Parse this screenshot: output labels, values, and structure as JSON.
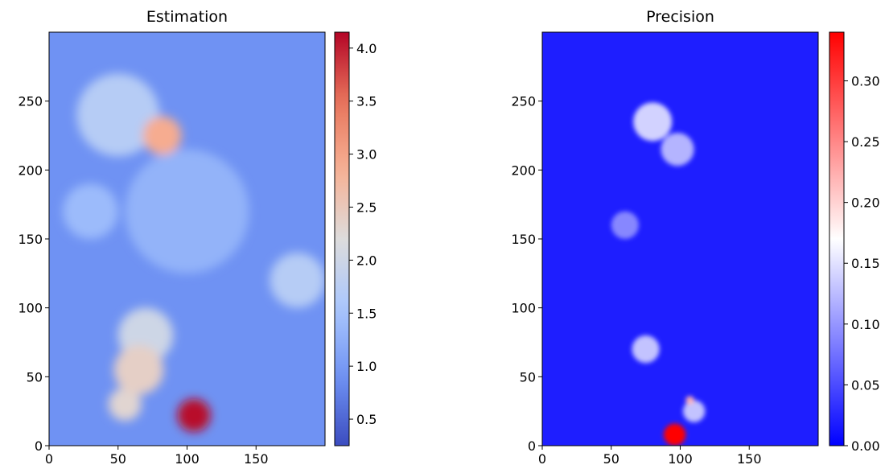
{
  "chart_data": [
    {
      "type": "heatmap",
      "title": "Estimation",
      "xlabel": "",
      "ylabel": "",
      "xlim": [
        0,
        200
      ],
      "ylim": [
        0,
        300
      ],
      "x_ticks": [
        0,
        50,
        100,
        150
      ],
      "y_ticks": [
        0,
        50,
        100,
        150,
        200,
        250
      ],
      "colormap": "coolwarm",
      "colorbar": {
        "range": [
          0.25,
          4.15
        ],
        "ticks": [
          "0.5",
          "1.0",
          "1.5",
          "2.0",
          "2.5",
          "3.0",
          "3.5",
          "4.0"
        ],
        "tick_values": [
          0.5,
          1.0,
          1.5,
          2.0,
          2.5,
          3.0,
          3.5,
          4.0
        ]
      },
      "colors": [
        "#3b4cc0",
        "#6f92f3",
        "#aac7fd",
        "#dddcdc",
        "#f7b194",
        "#e7745b",
        "#b40426"
      ],
      "background_value": 0.9,
      "hotspots": [
        {
          "x": 105,
          "y": 22,
          "value": 4.1,
          "radius": 12
        },
        {
          "x": 82,
          "y": 225,
          "value": 2.9,
          "radius": 14
        },
        {
          "x": 65,
          "y": 55,
          "value": 2.4,
          "radius": 18
        },
        {
          "x": 55,
          "y": 30,
          "value": 2.3,
          "radius": 12
        },
        {
          "x": 70,
          "y": 80,
          "value": 2.0,
          "radius": 20
        },
        {
          "x": 50,
          "y": 240,
          "value": 1.7,
          "radius": 30
        },
        {
          "x": 180,
          "y": 120,
          "value": 1.7,
          "radius": 20
        },
        {
          "x": 100,
          "y": 170,
          "value": 1.3,
          "radius": 45
        },
        {
          "x": 30,
          "y": 170,
          "value": 1.4,
          "radius": 20
        }
      ]
    },
    {
      "type": "heatmap",
      "title": "Precision",
      "xlabel": "",
      "ylabel": "",
      "xlim": [
        0,
        200
      ],
      "ylim": [
        0,
        300
      ],
      "x_ticks": [
        0,
        50,
        100,
        150
      ],
      "y_ticks": [
        0,
        50,
        100,
        150,
        200,
        250
      ],
      "colormap": "bwr",
      "colorbar": {
        "range": [
          0.0,
          0.34
        ],
        "ticks": [
          "0.00",
          "0.05",
          "0.10",
          "0.15",
          "0.20",
          "0.25",
          "0.30"
        ],
        "tick_values": [
          0.0,
          0.05,
          0.1,
          0.15,
          0.2,
          0.25,
          0.3
        ]
      },
      "colors": [
        "#0000ff",
        "#ffffff",
        "#ff0000"
      ],
      "background_value": 0.02,
      "hotspots": [
        {
          "x": 96,
          "y": 8,
          "value": 0.34,
          "radius": 8
        },
        {
          "x": 107,
          "y": 33,
          "value": 0.22,
          "radius": 3
        },
        {
          "x": 80,
          "y": 235,
          "value": 0.14,
          "radius": 14
        },
        {
          "x": 98,
          "y": 215,
          "value": 0.12,
          "radius": 12
        },
        {
          "x": 75,
          "y": 70,
          "value": 0.13,
          "radius": 10
        },
        {
          "x": 110,
          "y": 25,
          "value": 0.13,
          "radius": 8
        },
        {
          "x": 60,
          "y": 160,
          "value": 0.09,
          "radius": 10
        }
      ]
    }
  ]
}
